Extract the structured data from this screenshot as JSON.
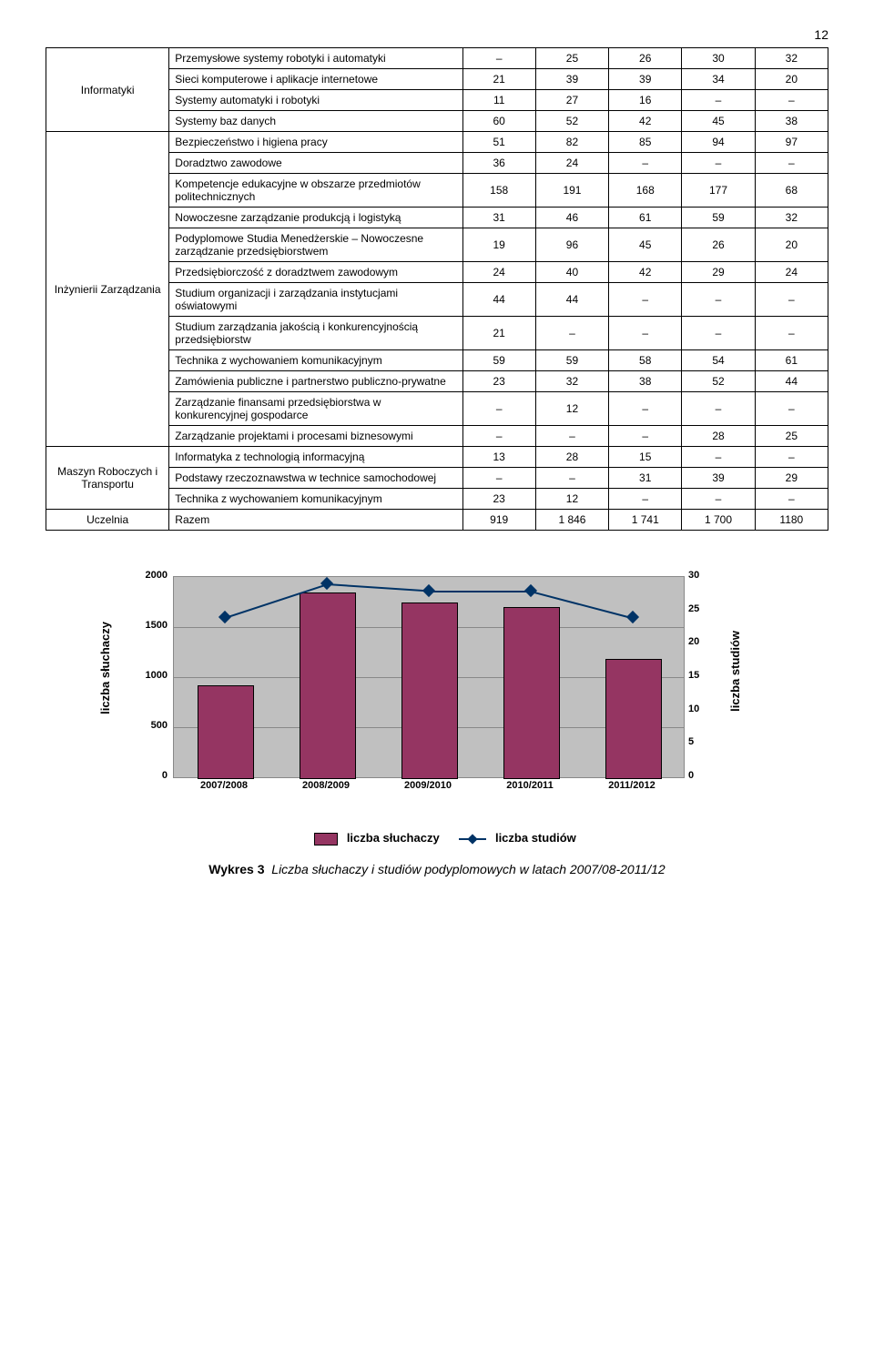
{
  "page_number": "12",
  "table": {
    "groups": [
      {
        "name": "Informatyki",
        "rows": [
          {
            "label": "Przemysłowe systemy robotyki i automatyki",
            "v": [
              "–",
              "25",
              "26",
              "30",
              "32"
            ]
          },
          {
            "label": "Sieci komputerowe i aplikacje internetowe",
            "v": [
              "21",
              "39",
              "39",
              "34",
              "20"
            ]
          },
          {
            "label": "Systemy automatyki i robotyki",
            "v": [
              "11",
              "27",
              "16",
              "–",
              "–"
            ]
          },
          {
            "label": "Systemy baz danych",
            "v": [
              "60",
              "52",
              "42",
              "45",
              "38"
            ]
          }
        ]
      },
      {
        "name": "Inżynierii Zarządzania",
        "rows": [
          {
            "label": "Bezpieczeństwo i higiena pracy",
            "v": [
              "51",
              "82",
              "85",
              "94",
              "97"
            ]
          },
          {
            "label": "Doradztwo zawodowe",
            "v": [
              "36",
              "24",
              "–",
              "–",
              "–"
            ]
          },
          {
            "label": "Kompetencje edukacyjne w obszarze przedmiotów politechnicznych",
            "v": [
              "158",
              "191",
              "168",
              "177",
              "68"
            ]
          },
          {
            "label": "Nowoczesne zarządzanie produkcją i logistyką",
            "v": [
              "31",
              "46",
              "61",
              "59",
              "32"
            ]
          },
          {
            "label": "Podyplomowe Studia Menedżerskie – Nowoczesne zarządzanie przedsiębiorstwem",
            "v": [
              "19",
              "96",
              "45",
              "26",
              "20"
            ]
          },
          {
            "label": "Przedsiębiorczość z doradztwem zawodowym",
            "v": [
              "24",
              "40",
              "42",
              "29",
              "24"
            ]
          },
          {
            "label": "Studium organizacji i zarządzania instytucjami oświatowymi",
            "v": [
              "44",
              "44",
              "–",
              "–",
              "–"
            ]
          },
          {
            "label": "Studium zarządzania jakością i konkurencyjnością przedsiębiorstw",
            "v": [
              "21",
              "–",
              "–",
              "–",
              "–"
            ]
          },
          {
            "label": "Technika z wychowaniem komunikacyjnym",
            "v": [
              "59",
              "59",
              "58",
              "54",
              "61"
            ]
          },
          {
            "label": "Zamówienia publiczne i partnerstwo publiczno-prywatne",
            "v": [
              "23",
              "32",
              "38",
              "52",
              "44"
            ]
          },
          {
            "label": "Zarządzanie finansami przedsiębiorstwa w konkurencyjnej gospodarce",
            "v": [
              "–",
              "12",
              "–",
              "–",
              "–"
            ]
          },
          {
            "label": "Zarządzanie projektami i procesami biznesowymi",
            "v": [
              "–",
              "–",
              "–",
              "28",
              "25"
            ]
          }
        ]
      },
      {
        "name": "Maszyn Roboczych i Transportu",
        "rows": [
          {
            "label": "Informatyka z technologią informacyjną",
            "v": [
              "13",
              "28",
              "15",
              "–",
              "–"
            ]
          },
          {
            "label": "Podstawy rzeczoznawstwa w technice samochodowej",
            "v": [
              "–",
              "–",
              "31",
              "39",
              "29"
            ]
          },
          {
            "label": "Technika z wychowaniem komunikacyjnym",
            "v": [
              "23",
              "12",
              "–",
              "–",
              "–"
            ]
          }
        ]
      }
    ],
    "total_row": {
      "group": "Uczelnia",
      "label": "Razem",
      "v": [
        "919",
        "1 846",
        "1 741",
        "1 700",
        "1180"
      ]
    }
  },
  "chart": {
    "type": "bar+line",
    "categories": [
      "2007/2008",
      "2008/2009",
      "2009/2010",
      "2010/2011",
      "2011/2012"
    ],
    "bar_values": [
      919,
      1846,
      1741,
      1700,
      1180
    ],
    "line_values": [
      24,
      29,
      28,
      28,
      24
    ],
    "y_left": {
      "min": 0,
      "max": 2000,
      "step": 500,
      "title": "liczba słuchaczy"
    },
    "y_right": {
      "min": 0,
      "max": 30,
      "step": 5,
      "title": "liczba studiów"
    },
    "bar_color": "#953562",
    "line_color": "#003366",
    "plot_bg": "#c0c0c0",
    "grid_color": "#888888"
  },
  "legend": {
    "bar_label": "liczba słuchaczy",
    "line_label": "liczba studiów"
  },
  "caption_prefix": "Wykres 3",
  "caption_text": "Liczba słuchaczy i studiów podyplomowych w latach 2007/08-2011/12"
}
